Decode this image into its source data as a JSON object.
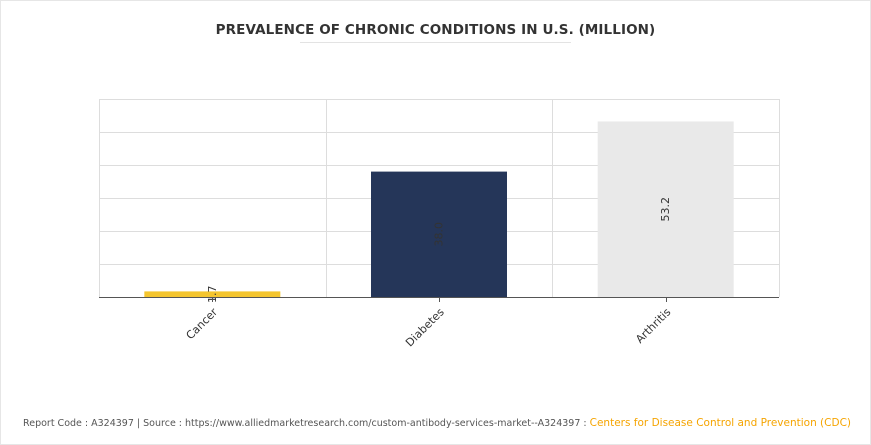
{
  "chart_data": {
    "type": "bar",
    "title": "PREVALENCE OF CHRONIC CONDITIONS IN U.S. (MILLION)",
    "categories": [
      "Cancer",
      "Diabetes",
      "Arthritis"
    ],
    "values": [
      1.7,
      38.0,
      53.2
    ],
    "value_labels": [
      "1.7",
      "38.0",
      "53.2"
    ],
    "colors": [
      "#f4c52e",
      "#253659",
      "#e9e9e9"
    ],
    "xlabel": "",
    "ylabel": "",
    "ylim": [
      0,
      60
    ],
    "grid": true,
    "legend": "none"
  },
  "footer": {
    "report_code": "Report Code : A324397",
    "separator": "|",
    "source": "Source : https://www.alliedmarketresearch.com/custom-antibody-services-market--A324397 :",
    "source_name": "Centers for Disease Control and Prevention (CDC)"
  }
}
